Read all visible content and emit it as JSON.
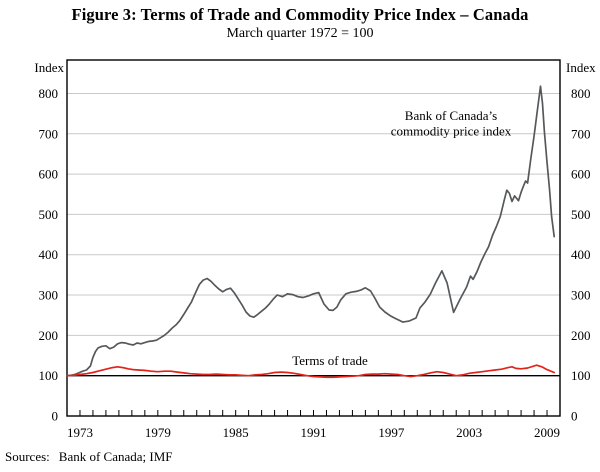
{
  "header": {
    "title": "Figure 3: Terms of Trade and Commodity Price Index – Canada",
    "subtitle": "March quarter 1972 = 100"
  },
  "footer": {
    "sources_label": "Sources:",
    "sources_value": "Bank of Canada; IMF"
  },
  "chart_data": {
    "type": "line",
    "title": "Figure 3: Terms of Trade and Commodity Price Index – Canada",
    "subtitle": "March quarter 1972 = 100",
    "grid": true,
    "grid_color": "#c9c9c9",
    "frame_color": "#000000",
    "reference_line_value": 100,
    "y_axis": {
      "unit_label_left": "Index",
      "unit_label_right": "Index",
      "range": [
        0,
        883
      ],
      "tick_values": [
        0,
        100,
        200,
        300,
        400,
        500,
        600,
        700,
        800
      ],
      "grid_values": [
        100,
        200,
        300,
        400,
        500,
        600,
        700,
        800
      ]
    },
    "x_axis": {
      "range": [
        1972,
        2010
      ],
      "minor_tick_start": 1973,
      "minor_tick_end": 2009,
      "labeled_ticks": [
        1973,
        1979,
        1985,
        1991,
        1997,
        2003,
        2009
      ]
    },
    "series": [
      {
        "name": "Bank of Canada's commodity price index",
        "color": "#56595c",
        "width": 1.7,
        "points": [
          [
            1972.0,
            100
          ],
          [
            1972.3,
            101
          ],
          [
            1972.6,
            103
          ],
          [
            1972.9,
            107
          ],
          [
            1973.2,
            111
          ],
          [
            1973.5,
            114
          ],
          [
            1973.8,
            124
          ],
          [
            1974.0,
            145
          ],
          [
            1974.2,
            160
          ],
          [
            1974.4,
            169
          ],
          [
            1974.7,
            173
          ],
          [
            1975.0,
            174
          ],
          [
            1975.3,
            167
          ],
          [
            1975.6,
            171
          ],
          [
            1975.9,
            179
          ],
          [
            1976.2,
            182
          ],
          [
            1976.5,
            181
          ],
          [
            1976.8,
            178
          ],
          [
            1977.1,
            176
          ],
          [
            1977.4,
            181
          ],
          [
            1977.7,
            179
          ],
          [
            1978.0,
            182
          ],
          [
            1978.3,
            185
          ],
          [
            1978.6,
            186
          ],
          [
            1978.9,
            188
          ],
          [
            1979.2,
            194
          ],
          [
            1979.5,
            200
          ],
          [
            1979.8,
            208
          ],
          [
            1980.1,
            218
          ],
          [
            1980.4,
            226
          ],
          [
            1980.7,
            237
          ],
          [
            1981.0,
            252
          ],
          [
            1981.3,
            268
          ],
          [
            1981.6,
            283
          ],
          [
            1981.9,
            305
          ],
          [
            1982.2,
            326
          ],
          [
            1982.5,
            337
          ],
          [
            1982.8,
            341
          ],
          [
            1983.1,
            334
          ],
          [
            1983.4,
            324
          ],
          [
            1983.7,
            315
          ],
          [
            1984.0,
            308
          ],
          [
            1984.3,
            314
          ],
          [
            1984.6,
            317
          ],
          [
            1984.9,
            305
          ],
          [
            1985.2,
            290
          ],
          [
            1985.5,
            275
          ],
          [
            1985.8,
            258
          ],
          [
            1986.1,
            248
          ],
          [
            1986.4,
            245
          ],
          [
            1986.7,
            252
          ],
          [
            1987.0,
            260
          ],
          [
            1987.3,
            268
          ],
          [
            1987.6,
            278
          ],
          [
            1987.9,
            290
          ],
          [
            1988.2,
            300
          ],
          [
            1988.6,
            296
          ],
          [
            1989.0,
            303
          ],
          [
            1989.4,
            301
          ],
          [
            1989.8,
            296
          ],
          [
            1990.2,
            294
          ],
          [
            1990.6,
            298
          ],
          [
            1991.0,
            303
          ],
          [
            1991.4,
            306
          ],
          [
            1991.8,
            278
          ],
          [
            1992.2,
            263
          ],
          [
            1992.5,
            262
          ],
          [
            1992.8,
            270
          ],
          [
            1993.1,
            288
          ],
          [
            1993.5,
            303
          ],
          [
            1993.9,
            307
          ],
          [
            1994.3,
            309
          ],
          [
            1994.7,
            313
          ],
          [
            1995.0,
            318
          ],
          [
            1995.4,
            310
          ],
          [
            1995.7,
            294
          ],
          [
            1996.1,
            270
          ],
          [
            1996.5,
            258
          ],
          [
            1996.9,
            249
          ],
          [
            1997.3,
            242
          ],
          [
            1997.9,
            233
          ],
          [
            1998.4,
            236
          ],
          [
            1998.9,
            243
          ],
          [
            1999.2,
            268
          ],
          [
            1999.6,
            283
          ],
          [
            2000.0,
            302
          ],
          [
            2000.4,
            330
          ],
          [
            2000.9,
            360
          ],
          [
            2001.3,
            330
          ],
          [
            2001.8,
            257
          ],
          [
            2002.3,
            290
          ],
          [
            2002.8,
            320
          ],
          [
            2003.1,
            347
          ],
          [
            2003.3,
            339
          ],
          [
            2003.6,
            358
          ],
          [
            2003.9,
            382
          ],
          [
            2004.2,
            402
          ],
          [
            2004.5,
            420
          ],
          [
            2004.8,
            448
          ],
          [
            2005.1,
            470
          ],
          [
            2005.4,
            495
          ],
          [
            2005.7,
            535
          ],
          [
            2005.9,
            560
          ],
          [
            2006.1,
            552
          ],
          [
            2006.3,
            532
          ],
          [
            2006.5,
            546
          ],
          [
            2006.8,
            534
          ],
          [
            2007.0,
            555
          ],
          [
            2007.2,
            572
          ],
          [
            2007.35,
            583
          ],
          [
            2007.5,
            578
          ],
          [
            2007.75,
            638
          ],
          [
            2008.0,
            695
          ],
          [
            2008.25,
            757
          ],
          [
            2008.5,
            818
          ],
          [
            2008.65,
            775
          ],
          [
            2008.8,
            705
          ],
          [
            2009.0,
            630
          ],
          [
            2009.2,
            560
          ],
          [
            2009.35,
            495
          ],
          [
            2009.55,
            445
          ]
        ]
      },
      {
        "name": "Terms of trade",
        "color": "#e2231a",
        "width": 1.7,
        "points": [
          [
            1972.0,
            100
          ],
          [
            1972.5,
            101
          ],
          [
            1973.0,
            103
          ],
          [
            1973.5,
            105
          ],
          [
            1974.0,
            108
          ],
          [
            1974.5,
            112
          ],
          [
            1975.0,
            116
          ],
          [
            1975.5,
            120
          ],
          [
            1975.9,
            122
          ],
          [
            1976.3,
            120
          ],
          [
            1976.7,
            117
          ],
          [
            1977.1,
            115
          ],
          [
            1977.5,
            114
          ],
          [
            1978.0,
            113
          ],
          [
            1978.5,
            111
          ],
          [
            1979.0,
            110
          ],
          [
            1979.5,
            111
          ],
          [
            1980.0,
            111
          ],
          [
            1980.5,
            109
          ],
          [
            1981.0,
            107
          ],
          [
            1981.5,
            105
          ],
          [
            1982.0,
            104
          ],
          [
            1982.5,
            103
          ],
          [
            1983.0,
            103
          ],
          [
            1983.5,
            104
          ],
          [
            1984.0,
            103
          ],
          [
            1984.5,
            102
          ],
          [
            1985.0,
            102
          ],
          [
            1985.5,
            101
          ],
          [
            1986.0,
            100
          ],
          [
            1986.5,
            102
          ],
          [
            1987.0,
            103
          ],
          [
            1987.5,
            105
          ],
          [
            1988.0,
            108
          ],
          [
            1988.5,
            109
          ],
          [
            1989.0,
            108
          ],
          [
            1989.5,
            106
          ],
          [
            1990.0,
            103
          ],
          [
            1990.5,
            100
          ],
          [
            1991.0,
            98
          ],
          [
            1991.5,
            97
          ],
          [
            1992.0,
            96
          ],
          [
            1992.5,
            96
          ],
          [
            1993.0,
            97
          ],
          [
            1993.5,
            98
          ],
          [
            1994.0,
            99
          ],
          [
            1994.5,
            100
          ],
          [
            1995.0,
            103
          ],
          [
            1995.5,
            104
          ],
          [
            1996.0,
            104
          ],
          [
            1996.5,
            105
          ],
          [
            1997.0,
            104
          ],
          [
            1997.5,
            103
          ],
          [
            1998.0,
            100
          ],
          [
            1998.5,
            98
          ],
          [
            1999.0,
            100
          ],
          [
            1999.5,
            103
          ],
          [
            2000.0,
            107
          ],
          [
            2000.5,
            110
          ],
          [
            2001.0,
            108
          ],
          [
            2001.5,
            104
          ],
          [
            2002.0,
            100
          ],
          [
            2002.5,
            102
          ],
          [
            2003.0,
            106
          ],
          [
            2003.5,
            108
          ],
          [
            2004.0,
            110
          ],
          [
            2004.5,
            112
          ],
          [
            2005.0,
            114
          ],
          [
            2005.5,
            116
          ],
          [
            2006.0,
            120
          ],
          [
            2006.3,
            122
          ],
          [
            2006.6,
            118
          ],
          [
            2007.0,
            117
          ],
          [
            2007.5,
            119
          ],
          [
            2008.2,
            126
          ],
          [
            2008.6,
            122
          ],
          [
            2009.0,
            115
          ],
          [
            2009.55,
            108
          ]
        ]
      }
    ],
    "annotations": [
      {
        "id": "commodity",
        "text_lines": [
          "Bank of Canada’s",
          "commodity price index"
        ],
        "color": "#7f8285",
        "x": 451,
        "y": 70,
        "line_height": 15.5
      },
      {
        "id": "terms-of-trade",
        "text_lines": [
          "Terms of trade"
        ],
        "color": "#e2231a",
        "x": 330,
        "y": 315,
        "line_height": 15.5
      }
    ],
    "legend_position": "none"
  }
}
